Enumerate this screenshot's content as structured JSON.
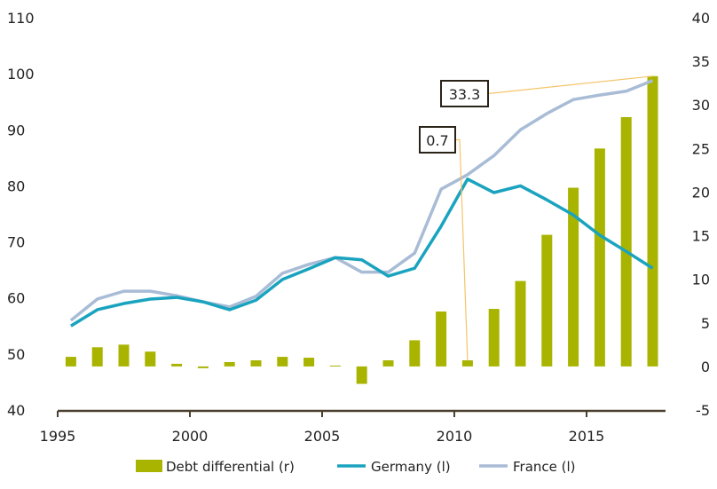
{
  "chart_data": {
    "type": "bar+line",
    "title": "",
    "xlabel": "",
    "ylabel_left": "",
    "ylabel_right": "",
    "x": [
      1995,
      1996,
      1997,
      1998,
      1999,
      2000,
      2001,
      2002,
      2003,
      2004,
      2005,
      2006,
      2007,
      2008,
      2009,
      2010,
      2011,
      2012,
      2013,
      2014,
      2015,
      2016,
      2017
    ],
    "x_ticks": [
      "1995",
      "2000",
      "2005",
      "2010",
      "2015"
    ],
    "ylim_left": [
      40,
      110
    ],
    "yticks_left": [
      "40",
      "50",
      "60",
      "70",
      "80",
      "90",
      "100",
      "110"
    ],
    "ylim_right": [
      -5,
      40
    ],
    "yticks_right": [
      "-5",
      "0",
      "5",
      "10",
      "15",
      "20",
      "25",
      "30",
      "35",
      "40"
    ],
    "grid": false,
    "legend_position": "bottom",
    "series": [
      {
        "name": "Debt differential (r)",
        "type": "bar",
        "axis": "right",
        "color": "#a8b400",
        "values": [
          1.1,
          2.2,
          2.5,
          1.7,
          0.3,
          -0.2,
          0.5,
          0.7,
          1.1,
          1.0,
          0.1,
          -2.0,
          0.7,
          3.0,
          6.3,
          0.7,
          6.6,
          9.8,
          15.1,
          20.5,
          25.0,
          28.6,
          33.3
        ]
      },
      {
        "name": "Germany (l)",
        "type": "line",
        "axis": "left",
        "color": "#1aa3bf",
        "values": [
          55.0,
          57.9,
          59.0,
          59.8,
          60.1,
          59.3,
          57.9,
          59.6,
          63.3,
          65.2,
          67.2,
          66.8,
          63.9,
          65.3,
          72.8,
          81.2,
          78.8,
          80.0,
          77.5,
          74.8,
          71.2,
          68.3,
          65.3
        ]
      },
      {
        "name": "France (l)",
        "type": "line",
        "axis": "left",
        "color": "#a9bcd6",
        "values": [
          56.0,
          59.8,
          61.2,
          61.2,
          60.4,
          59.3,
          58.4,
          60.3,
          64.4,
          66.0,
          67.2,
          64.6,
          64.6,
          68.0,
          79.4,
          82.0,
          85.4,
          90.0,
          92.9,
          95.4,
          96.2,
          96.9,
          98.8
        ]
      }
    ],
    "annotations": [
      {
        "text": "0.7",
        "year": 2010
      },
      {
        "text": "33.3",
        "year": 2017
      }
    ]
  }
}
